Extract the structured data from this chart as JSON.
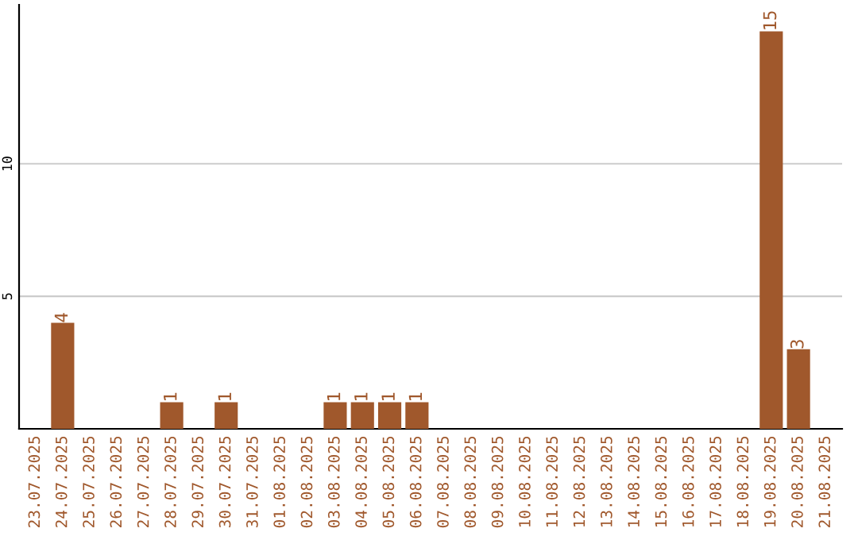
{
  "chart_data": {
    "type": "bar",
    "categories": [
      "23.07.2025",
      "24.07.2025",
      "25.07.2025",
      "26.07.2025",
      "27.07.2025",
      "28.07.2025",
      "29.07.2025",
      "30.07.2025",
      "31.07.2025",
      "01.08.2025",
      "02.08.2025",
      "03.08.2025",
      "04.08.2025",
      "05.08.2025",
      "06.08.2025",
      "07.08.2025",
      "08.08.2025",
      "09.08.2025",
      "10.08.2025",
      "11.08.2025",
      "12.08.2025",
      "13.08.2025",
      "14.08.2025",
      "15.08.2025",
      "16.08.2025",
      "17.08.2025",
      "18.08.2025",
      "19.08.2025",
      "20.08.2025",
      "21.08.2025"
    ],
    "values": [
      0,
      4,
      0,
      0,
      0,
      1,
      0,
      1,
      0,
      0,
      0,
      1,
      1,
      1,
      1,
      0,
      0,
      0,
      0,
      0,
      0,
      0,
      0,
      0,
      0,
      0,
      0,
      15,
      3,
      0
    ],
    "value_labels": [
      null,
      "4",
      null,
      null,
      null,
      "1",
      null,
      "1",
      null,
      null,
      null,
      "1",
      "1",
      "1",
      "1",
      null,
      null,
      null,
      null,
      null,
      null,
      null,
      null,
      null,
      null,
      null,
      null,
      "15",
      "3",
      null
    ],
    "color": "#a0582c",
    "ylim": [
      0,
      16
    ],
    "yticks": [
      5,
      10
    ],
    "grid": "y"
  }
}
